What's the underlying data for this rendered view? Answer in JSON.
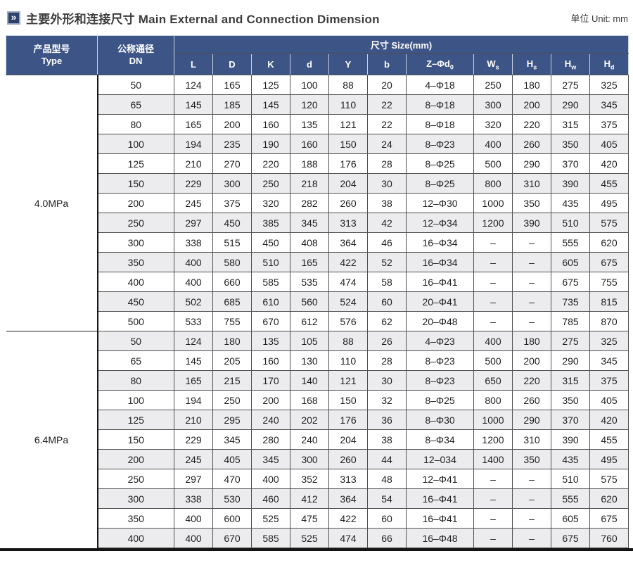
{
  "header": {
    "icon": "double-chevron-right",
    "title_zh": "主要外形和连接尺寸",
    "title_en": "Main External and Connection Dimension",
    "unit": "单位 Unit: mm"
  },
  "colors": {
    "header_bg": "#3d5486",
    "stripe_row_bg": "#ececee",
    "icon_bg": "#2c4168",
    "grid_line": "#4f4f4f"
  },
  "table": {
    "type_header_zh": "产品型号",
    "type_header_en": "Type",
    "dn_header_zh": "公称通径",
    "dn_header_en": "DN",
    "size_header": "尺寸 Size(mm)",
    "size_columns": [
      {
        "name": "L",
        "t": "L"
      },
      {
        "name": "D",
        "t": "D"
      },
      {
        "name": "K",
        "t": "K"
      },
      {
        "name": "d",
        "t": "d"
      },
      {
        "name": "Y",
        "t": "Y"
      },
      {
        "name": "b",
        "t": "b"
      },
      {
        "name": "Z-d0",
        "t": "Z–Φd",
        "sub": "0"
      },
      {
        "name": "Ws",
        "t": "W",
        "sub": "s"
      },
      {
        "name": "Hs",
        "t": "H",
        "sub": "s"
      },
      {
        "name": "Hw",
        "t": "H",
        "sub": "w"
      },
      {
        "name": "Hd",
        "t": "H",
        "sub": "d"
      }
    ],
    "sections": [
      {
        "type": "4.0MPa",
        "rows": [
          [
            "50",
            "124",
            "165",
            "125",
            "100",
            "88",
            "20",
            "4–Φ18",
            "250",
            "180",
            "275",
            "325"
          ],
          [
            "65",
            "145",
            "185",
            "145",
            "120",
            "110",
            "22",
            "8–Φ18",
            "300",
            "200",
            "290",
            "345"
          ],
          [
            "80",
            "165",
            "200",
            "160",
            "135",
            "121",
            "22",
            "8–Φ18",
            "320",
            "220",
            "315",
            "375"
          ],
          [
            "100",
            "194",
            "235",
            "190",
            "160",
            "150",
            "24",
            "8–Φ23",
            "400",
            "260",
            "350",
            "405"
          ],
          [
            "125",
            "210",
            "270",
            "220",
            "188",
            "176",
            "28",
            "8–Φ25",
            "500",
            "290",
            "370",
            "420"
          ],
          [
            "150",
            "229",
            "300",
            "250",
            "218",
            "204",
            "30",
            "8–Φ25",
            "800",
            "310",
            "390",
            "455"
          ],
          [
            "200",
            "245",
            "375",
            "320",
            "282",
            "260",
            "38",
            "12–Φ30",
            "1000",
            "350",
            "435",
            "495"
          ],
          [
            "250",
            "297",
            "450",
            "385",
            "345",
            "313",
            "42",
            "12–Φ34",
            "1200",
            "390",
            "510",
            "575"
          ],
          [
            "300",
            "338",
            "515",
            "450",
            "408",
            "364",
            "46",
            "16–Φ34",
            "–",
            "–",
            "555",
            "620"
          ],
          [
            "350",
            "400",
            "580",
            "510",
            "165",
            "422",
            "52",
            "16–Φ34",
            "–",
            "–",
            "605",
            "675"
          ],
          [
            "400",
            "400",
            "660",
            "585",
            "535",
            "474",
            "58",
            "16–Φ41",
            "–",
            "–",
            "675",
            "755"
          ],
          [
            "450",
            "502",
            "685",
            "610",
            "560",
            "524",
            "60",
            "20–Φ41",
            "–",
            "–",
            "735",
            "815"
          ],
          [
            "500",
            "533",
            "755",
            "670",
            "612",
            "576",
            "62",
            "20–Φ48",
            "–",
            "–",
            "785",
            "870"
          ]
        ]
      },
      {
        "type": "6.4MPa",
        "rows": [
          [
            "50",
            "124",
            "180",
            "135",
            "105",
            "88",
            "26",
            "4–Φ23",
            "400",
            "180",
            "275",
            "325"
          ],
          [
            "65",
            "145",
            "205",
            "160",
            "130",
            "110",
            "28",
            "8–Φ23",
            "500",
            "200",
            "290",
            "345"
          ],
          [
            "80",
            "165",
            "215",
            "170",
            "140",
            "121",
            "30",
            "8–Φ23",
            "650",
            "220",
            "315",
            "375"
          ],
          [
            "100",
            "194",
            "250",
            "200",
            "168",
            "150",
            "32",
            "8–Φ25",
            "800",
            "260",
            "350",
            "405"
          ],
          [
            "125",
            "210",
            "295",
            "240",
            "202",
            "176",
            "36",
            "8–Φ30",
            "1000",
            "290",
            "370",
            "420"
          ],
          [
            "150",
            "229",
            "345",
            "280",
            "240",
            "204",
            "38",
            "8–Φ34",
            "1200",
            "310",
            "390",
            "455"
          ],
          [
            "200",
            "245",
            "405",
            "345",
            "300",
            "260",
            "44",
            "12–034",
            "1400",
            "350",
            "435",
            "495"
          ],
          [
            "250",
            "297",
            "470",
            "400",
            "352",
            "313",
            "48",
            "12–Φ41",
            "–",
            "–",
            "510",
            "575"
          ],
          [
            "300",
            "338",
            "530",
            "460",
            "412",
            "364",
            "54",
            "16–Φ41",
            "–",
            "–",
            "555",
            "620"
          ],
          [
            "350",
            "400",
            "600",
            "525",
            "475",
            "422",
            "60",
            "16–Φ41",
            "–",
            "–",
            "605",
            "675"
          ],
          [
            "400",
            "400",
            "670",
            "585",
            "525",
            "474",
            "66",
            "16–Φ48",
            "–",
            "–",
            "675",
            "760"
          ]
        ]
      }
    ]
  }
}
